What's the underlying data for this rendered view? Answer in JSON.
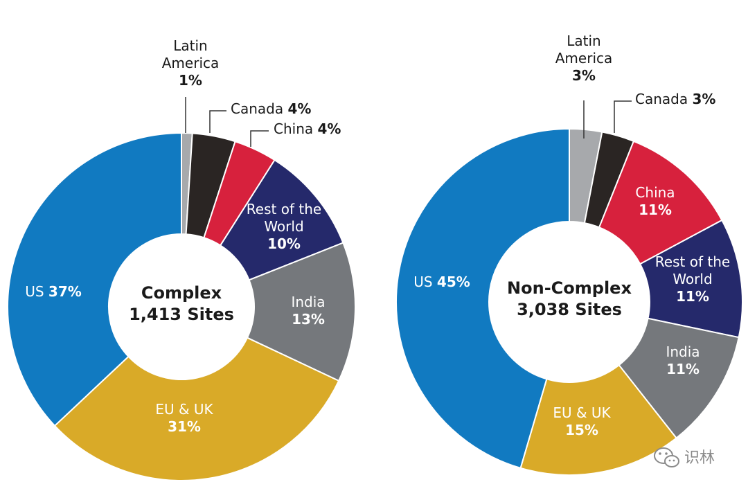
{
  "chart_data": [
    {
      "type": "pie",
      "center_title": "Complex",
      "center_subtitle": "1,413 Sites",
      "slices": [
        {
          "name": "Latin America",
          "label_lines": [
            "Latin",
            "America"
          ],
          "value_label": "1%",
          "value": 1,
          "color": "#a7a9ac"
        },
        {
          "name": "Canada",
          "label_lines": [
            "Canada"
          ],
          "value_label": "4%",
          "value": 4,
          "color": "#2a2523"
        },
        {
          "name": "China",
          "label_lines": [
            "China"
          ],
          "value_label": "4%",
          "value": 4,
          "color": "#d7213d"
        },
        {
          "name": "Rest of the World",
          "label_lines": [
            "Rest of the",
            "World"
          ],
          "value_label": "10%",
          "value": 10,
          "color": "#25296b"
        },
        {
          "name": "India",
          "label_lines": [
            "India"
          ],
          "value_label": "13%",
          "value": 13,
          "color": "#75787c"
        },
        {
          "name": "EU & UK",
          "label_lines": [
            "EU & UK"
          ],
          "value_label": "31%",
          "value": 31,
          "color": "#d9aa28"
        },
        {
          "name": "US",
          "label_lines": [
            "US"
          ],
          "value_label": "37%",
          "value": 37,
          "color": "#117ac1"
        }
      ]
    },
    {
      "type": "pie",
      "center_title": "Non-Complex",
      "center_subtitle": "3,038 Sites",
      "slices": [
        {
          "name": "Latin America",
          "label_lines": [
            "Latin",
            "America"
          ],
          "value_label": "3%",
          "value": 3,
          "color": "#a7a9ac"
        },
        {
          "name": "Canada",
          "label_lines": [
            "Canada"
          ],
          "value_label": "3%",
          "value": 3,
          "color": "#2a2523"
        },
        {
          "name": "China",
          "label_lines": [
            "China"
          ],
          "value_label": "11%",
          "value": 11,
          "color": "#d7213d"
        },
        {
          "name": "Rest of the World",
          "label_lines": [
            "Rest of the",
            "World"
          ],
          "value_label": "11%",
          "value": 11,
          "color": "#25296b"
        },
        {
          "name": "India",
          "label_lines": [
            "India"
          ],
          "value_label": "11%",
          "value": 11,
          "color": "#75787c"
        },
        {
          "name": "EU & UK",
          "label_lines": [
            "EU & UK"
          ],
          "value_label": "15%",
          "value": 15,
          "color": "#d9aa28"
        },
        {
          "name": "US",
          "label_lines": [
            "US"
          ],
          "value_label": "45%",
          "value": 45,
          "color": "#117ac1"
        }
      ]
    }
  ],
  "watermark": {
    "text": "识林"
  }
}
